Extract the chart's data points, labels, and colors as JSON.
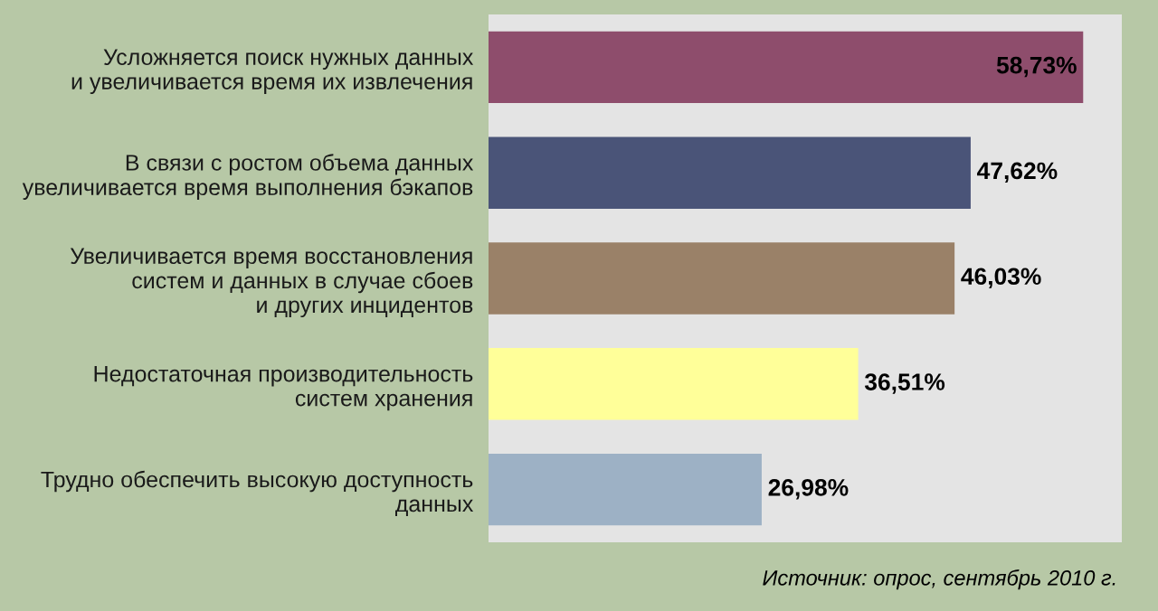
{
  "chart_data": {
    "type": "bar",
    "orientation": "horizontal",
    "categories": [
      "Усложняется поиск нужных данных\nи увеличивается время их извлечения",
      "В связи с ростом объема данных\nувеличивается время выполнения бэкапов",
      "Увеличивается время восстановления\nсистем и данных в случае сбоев\nи других инцидентов",
      "Недостаточная производительность\nсистем хранения",
      "Трудно обеспечить высокую доступность\nданных"
    ],
    "values": [
      58.73,
      47.62,
      46.03,
      36.51,
      26.98
    ],
    "colors": [
      "#8e4d6c",
      "#4a5478",
      "#9a8168",
      "#ffff99",
      "#9db1c5"
    ],
    "value_labels": [
      "58,73%",
      "47,62%",
      "46,03%",
      "36,51%",
      "26,98%"
    ],
    "annotations": [
      "Источник: опрос, сентябрь 2010 г."
    ],
    "grid": false,
    "legend": false
  }
}
